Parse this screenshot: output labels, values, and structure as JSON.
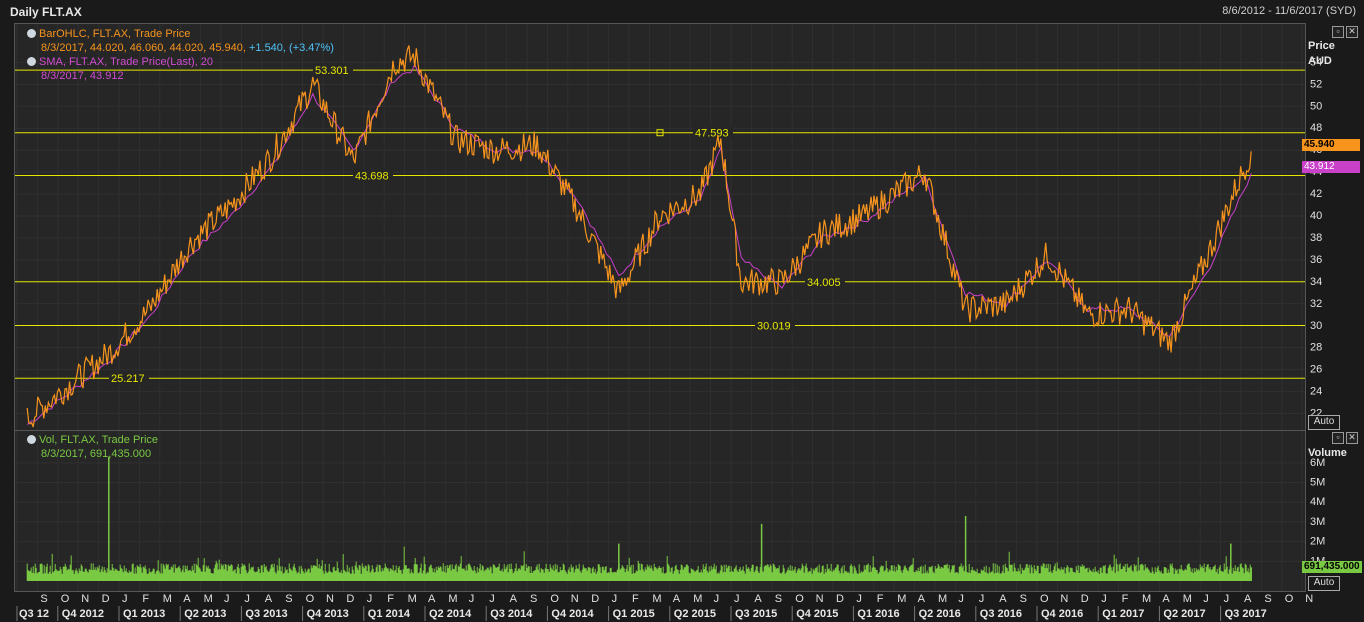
{
  "window": {
    "title": "Daily FLT.AX",
    "date_range": "8/6/2012 - 11/6/2017 (SYD)"
  },
  "price_pane": {
    "legend": [
      {
        "label": "BarOHLC, FLT.AX, Trade Price",
        "value": "8/3/2017, 44.020, 46.060, 44.020, 45.940,",
        "change": "+1.540, (+3.47%)"
      },
      {
        "label": "SMA, FLT.AX, Trade Price(Last), 20",
        "value": "8/3/2017, 43.912"
      }
    ],
    "axis_title_1": "Price",
    "axis_title_2": "AUD",
    "last_price_tag": "45.940",
    "sma_tag": "43.912",
    "auto_label": "Auto",
    "colors": {
      "price": "#f7941d",
      "sma": "#c940c9",
      "hline": "#e6e600"
    }
  },
  "volume_pane": {
    "legend": {
      "label": "Vol, FLT.AX, Trade Price",
      "value": "8/3/2017, 691,435.000"
    },
    "axis_title": "Volume",
    "last_volume_tag": "691,435.000",
    "auto_label": "Auto",
    "colors": {
      "volume": "#7ac943"
    }
  },
  "chart_data": {
    "type": "line",
    "title": "Daily FLT.AX",
    "price_axis": {
      "label": "Price AUD",
      "ylim": [
        20.5,
        57.5
      ],
      "ticks": [
        22,
        24,
        26,
        28,
        30,
        32,
        34,
        36,
        38,
        40,
        42,
        44,
        46,
        48,
        50,
        52,
        54
      ]
    },
    "volume_axis": {
      "label": "Volume",
      "ylim": [
        0,
        6600000
      ],
      "ticks": [
        "1M",
        "2M",
        "3M",
        "4M",
        "5M",
        "6M"
      ],
      "tick_values": [
        1000000,
        2000000,
        3000000,
        4000000,
        5000000,
        6000000
      ]
    },
    "x_axis_months": [
      "S",
      "O",
      "N",
      "D",
      "J",
      "F",
      "M",
      "A",
      "M",
      "J",
      "J",
      "A",
      "S",
      "O",
      "N",
      "D",
      "J",
      "F",
      "M",
      "A",
      "M",
      "J",
      "J",
      "A",
      "S",
      "O",
      "N",
      "D",
      "J",
      "F",
      "M",
      "A",
      "M",
      "J",
      "J",
      "A",
      "S",
      "O",
      "N",
      "D",
      "J",
      "F",
      "M",
      "A",
      "M",
      "J",
      "J",
      "A",
      "S",
      "O",
      "N",
      "D",
      "J",
      "F",
      "M",
      "A",
      "M",
      "J",
      "J",
      "A",
      "S",
      "O",
      "N"
    ],
    "x_axis_quarters": [
      "Q3 12",
      "Q4 2012",
      "Q1 2013",
      "Q2 2013",
      "Q3 2013",
      "Q4 2013",
      "Q1 2014",
      "Q2 2014",
      "Q3 2014",
      "Q4 2014",
      "Q1 2015",
      "Q2 2015",
      "Q3 2015",
      "Q4 2015",
      "Q1 2016",
      "Q2 2016",
      "Q3 2016",
      "Q4 2016",
      "Q1 2017",
      "Q2 2017",
      "Q3 2017"
    ],
    "horizontal_lines": [
      {
        "value": 53.301,
        "label": "53.301"
      },
      {
        "value": 47.593,
        "label": "47.593"
      },
      {
        "value": 43.698,
        "label": "43.698"
      },
      {
        "value": 34.005,
        "label": "34.005"
      },
      {
        "value": 30.019,
        "label": "30.019"
      },
      {
        "value": 25.217,
        "label": "25.217"
      }
    ],
    "series": [
      {
        "name": "BarOHLC, FLT.AX, Trade Price",
        "x": [
          "2012-08",
          "2012-10",
          "2012-12",
          "2013-02",
          "2013-04",
          "2013-06",
          "2013-08",
          "2013-10",
          "2013-12",
          "2014-02",
          "2014-03",
          "2014-05",
          "2014-07",
          "2014-09",
          "2014-11",
          "2015-01",
          "2015-03",
          "2015-05",
          "2015-06",
          "2015-07",
          "2015-09",
          "2015-11",
          "2016-01",
          "2016-04",
          "2016-06",
          "2016-08",
          "2016-10",
          "2016-12",
          "2017-02",
          "2017-04",
          "2017-06",
          "2017-08"
        ],
        "values": [
          21.5,
          24.5,
          27.5,
          31.5,
          37.5,
          41.0,
          45.5,
          52.0,
          45.0,
          54.0,
          54.5,
          47.0,
          46.0,
          46.5,
          40.5,
          33.0,
          40.0,
          42.0,
          47.0,
          34.0,
          34.0,
          38.5,
          40.0,
          44.0,
          31.5,
          32.0,
          36.5,
          31.0,
          31.5,
          28.5,
          37.0,
          45.9
        ]
      },
      {
        "name": "SMA, FLT.AX, Trade Price(Last), 20",
        "x": [
          "2012-08",
          "2012-10",
          "2012-12",
          "2013-02",
          "2013-04",
          "2013-06",
          "2013-08",
          "2013-10",
          "2013-12",
          "2014-02",
          "2014-03",
          "2014-05",
          "2014-07",
          "2014-09",
          "2014-11",
          "2015-01",
          "2015-03",
          "2015-05",
          "2015-06",
          "2015-07",
          "2015-09",
          "2015-11",
          "2016-01",
          "2016-04",
          "2016-06",
          "2016-08",
          "2016-10",
          "2016-12",
          "2017-02",
          "2017-04",
          "2017-06",
          "2017-08"
        ],
        "values": [
          21.0,
          23.8,
          26.8,
          30.8,
          36.5,
          40.0,
          44.5,
          51.0,
          46.0,
          52.5,
          53.5,
          48.0,
          46.0,
          46.0,
          41.5,
          34.5,
          39.0,
          41.5,
          46.0,
          36.0,
          33.5,
          38.0,
          39.5,
          43.5,
          33.0,
          32.0,
          36.0,
          31.5,
          31.5,
          29.0,
          35.5,
          43.9
        ]
      },
      {
        "name": "Vol, FLT.AX, Trade Price",
        "spikes": [
          {
            "x": "2012-12",
            "value": 6300000
          },
          {
            "x": "2015-08",
            "value": 2900000
          },
          {
            "x": "2016-06",
            "value": 3300000
          },
          {
            "x": "2015-01",
            "value": 1900000
          },
          {
            "x": "2017-07",
            "value": 1900000
          },
          {
            "x": "2017-08",
            "value": 691435
          }
        ],
        "baseline": 600000
      }
    ]
  }
}
